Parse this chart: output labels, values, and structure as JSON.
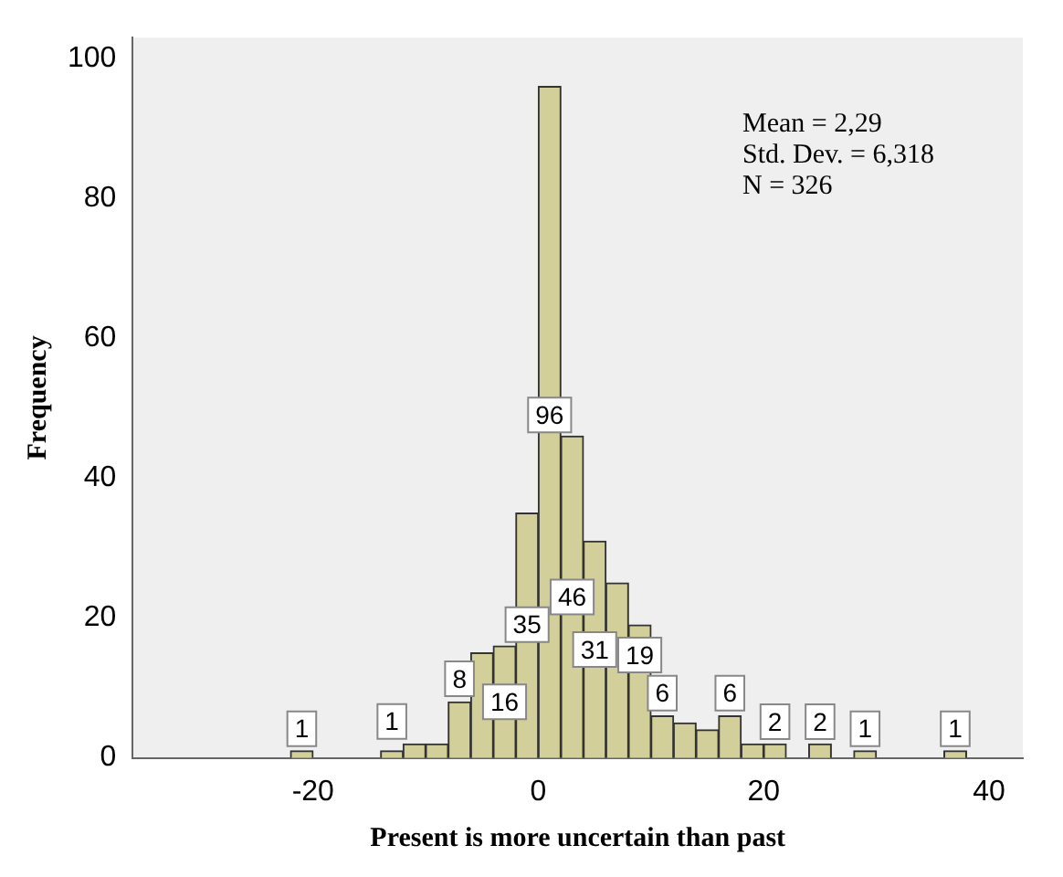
{
  "chart_data": {
    "type": "histogram",
    "xlabel": "Present is more uncertain than past",
    "ylabel": "Frequency",
    "bins": [
      -22,
      -20,
      -18,
      -16,
      -14,
      -12,
      -10,
      -8,
      -6,
      -4,
      -2,
      0,
      2,
      4,
      6,
      8,
      10,
      12,
      14,
      16,
      18,
      20,
      22,
      24,
      26,
      28,
      30,
      32,
      34,
      36,
      38
    ],
    "values": [
      1,
      0,
      0,
      0,
      1,
      2,
      2,
      8,
      15,
      16,
      35,
      96,
      46,
      31,
      25,
      19,
      6,
      5,
      4,
      6,
      2,
      2,
      0,
      2,
      0,
      1,
      0,
      0,
      0,
      1
    ],
    "value_labels": [
      "1",
      null,
      null,
      null,
      "1",
      null,
      null,
      "8",
      null,
      "16",
      "35",
      "96",
      "46",
      "31",
      null,
      "19",
      "6",
      null,
      null,
      "6",
      null,
      "2",
      null,
      "2",
      null,
      "1",
      null,
      null,
      null,
      "1"
    ],
    "color": "#d3cf9b",
    "xlim": [
      -36,
      43
    ],
    "xticks": [
      -20,
      0,
      20,
      40
    ],
    "ylim": [
      0,
      103
    ],
    "yticks": [
      0,
      20,
      40,
      60,
      80,
      100
    ],
    "grid": false,
    "annotations": [
      "Mean = 2,29",
      "Std. Dev. = 6,318",
      "N = 326"
    ]
  }
}
